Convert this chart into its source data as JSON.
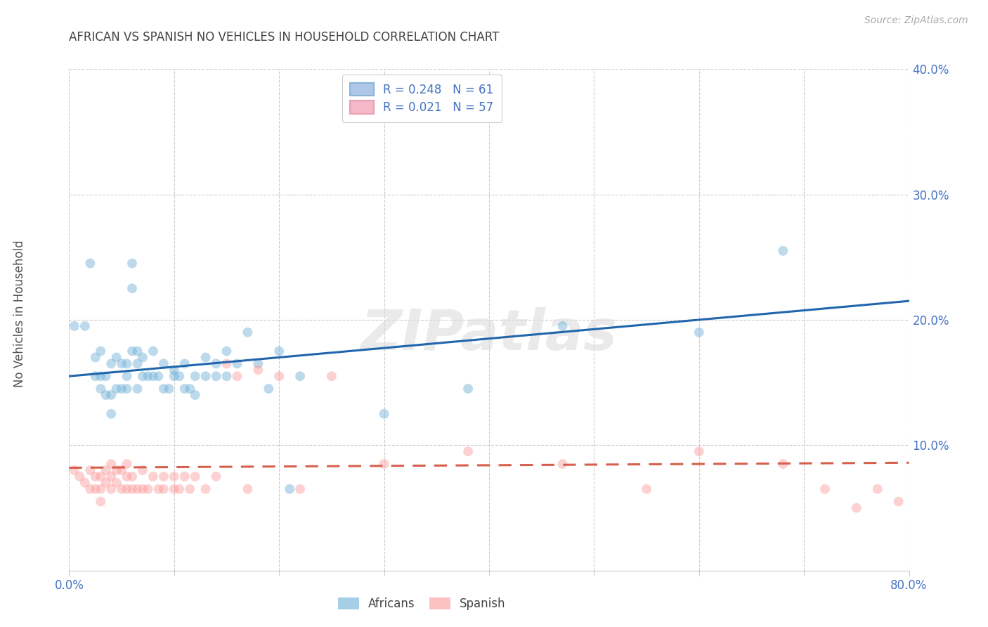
{
  "title": "AFRICAN VS SPANISH NO VEHICLES IN HOUSEHOLD CORRELATION CHART",
  "source": "Source: ZipAtlas.com",
  "ylabel": "No Vehicles in Household",
  "watermark": "ZIPatlas",
  "xlim": [
    0.0,
    0.8
  ],
  "ylim": [
    0.0,
    0.4
  ],
  "xticks": [
    0.0,
    0.1,
    0.2,
    0.3,
    0.4,
    0.5,
    0.6,
    0.7,
    0.8
  ],
  "yticks": [
    0.0,
    0.1,
    0.2,
    0.3,
    0.4
  ],
  "xtick_labels": [
    "0.0%",
    "",
    "",
    "",
    "",
    "",
    "",
    "",
    "80.0%"
  ],
  "ytick_labels": [
    "",
    "10.0%",
    "20.0%",
    "30.0%",
    "40.0%"
  ],
  "african_R": 0.248,
  "african_N": 61,
  "spanish_R": 0.021,
  "spanish_N": 57,
  "african_color": "#6baed6",
  "spanish_color": "#fb9a99",
  "african_line_color": "#2166ac",
  "spanish_line_color": "#d6604d",
  "grid_color": "#cccccc",
  "background_color": "#ffffff",
  "title_color": "#444444",
  "axis_label_color": "#555555",
  "legend_box_color_african": "#aec6e8",
  "legend_box_color_spanish": "#f4b8c8",
  "tick_color": "#4472c4",
  "african_x": [
    0.005,
    0.015,
    0.02,
    0.025,
    0.025,
    0.03,
    0.03,
    0.03,
    0.035,
    0.035,
    0.04,
    0.04,
    0.04,
    0.045,
    0.045,
    0.05,
    0.05,
    0.055,
    0.055,
    0.055,
    0.06,
    0.06,
    0.06,
    0.065,
    0.065,
    0.065,
    0.07,
    0.07,
    0.075,
    0.08,
    0.08,
    0.085,
    0.09,
    0.09,
    0.095,
    0.1,
    0.1,
    0.105,
    0.11,
    0.11,
    0.115,
    0.12,
    0.12,
    0.13,
    0.13,
    0.14,
    0.14,
    0.15,
    0.15,
    0.16,
    0.17,
    0.18,
    0.19,
    0.2,
    0.21,
    0.22,
    0.3,
    0.38,
    0.47,
    0.6,
    0.68
  ],
  "african_y": [
    0.195,
    0.195,
    0.245,
    0.17,
    0.155,
    0.175,
    0.155,
    0.145,
    0.155,
    0.14,
    0.165,
    0.14,
    0.125,
    0.17,
    0.145,
    0.165,
    0.145,
    0.165,
    0.155,
    0.145,
    0.245,
    0.225,
    0.175,
    0.175,
    0.165,
    0.145,
    0.17,
    0.155,
    0.155,
    0.175,
    0.155,
    0.155,
    0.165,
    0.145,
    0.145,
    0.16,
    0.155,
    0.155,
    0.165,
    0.145,
    0.145,
    0.155,
    0.14,
    0.17,
    0.155,
    0.165,
    0.155,
    0.175,
    0.155,
    0.165,
    0.19,
    0.165,
    0.145,
    0.175,
    0.065,
    0.155,
    0.125,
    0.145,
    0.195,
    0.19,
    0.255
  ],
  "spanish_x": [
    0.005,
    0.01,
    0.015,
    0.02,
    0.02,
    0.025,
    0.025,
    0.03,
    0.03,
    0.03,
    0.035,
    0.035,
    0.04,
    0.04,
    0.04,
    0.045,
    0.045,
    0.05,
    0.05,
    0.055,
    0.055,
    0.055,
    0.06,
    0.06,
    0.065,
    0.07,
    0.07,
    0.075,
    0.08,
    0.085,
    0.09,
    0.09,
    0.1,
    0.1,
    0.105,
    0.11,
    0.115,
    0.12,
    0.13,
    0.14,
    0.15,
    0.16,
    0.17,
    0.18,
    0.2,
    0.22,
    0.25,
    0.3,
    0.38,
    0.47,
    0.55,
    0.6,
    0.68,
    0.72,
    0.75,
    0.77,
    0.79
  ],
  "spanish_y": [
    0.08,
    0.075,
    0.07,
    0.08,
    0.065,
    0.075,
    0.065,
    0.075,
    0.065,
    0.055,
    0.08,
    0.07,
    0.085,
    0.075,
    0.065,
    0.08,
    0.07,
    0.08,
    0.065,
    0.085,
    0.075,
    0.065,
    0.075,
    0.065,
    0.065,
    0.08,
    0.065,
    0.065,
    0.075,
    0.065,
    0.075,
    0.065,
    0.075,
    0.065,
    0.065,
    0.075,
    0.065,
    0.075,
    0.065,
    0.075,
    0.165,
    0.155,
    0.065,
    0.16,
    0.155,
    0.065,
    0.155,
    0.085,
    0.095,
    0.085,
    0.065,
    0.095,
    0.085,
    0.065,
    0.05,
    0.065,
    0.055
  ],
  "african_trend_x": [
    0.0,
    0.8
  ],
  "african_trend_y": [
    0.155,
    0.215
  ],
  "spanish_trend_x": [
    0.0,
    0.8
  ],
  "spanish_trend_y": [
    0.082,
    0.086
  ],
  "marker_size": 100,
  "marker_alpha": 0.45,
  "line_width": 2.2
}
